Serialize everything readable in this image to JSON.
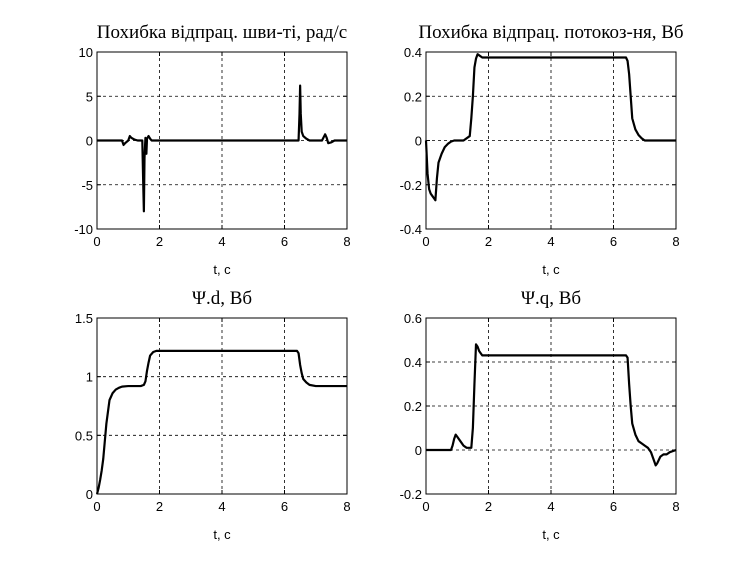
{
  "chart_data": [
    {
      "type": "line",
      "title": "Похибка відпрац. шви-ті, рад/с",
      "xlabel": "t, c",
      "ylabel": "",
      "xlim": [
        0,
        8
      ],
      "ylim": [
        -10,
        10
      ],
      "x_ticks": [
        "0",
        "2",
        "4",
        "6",
        "8"
      ],
      "y_ticks": [
        "10",
        "5",
        "0",
        "-5",
        "-10"
      ],
      "grid": true,
      "series": [
        {
          "x": [
            0,
            0.8,
            0.85,
            0.9,
            1.0,
            1.05,
            1.1,
            1.2,
            1.3,
            1.45,
            1.48,
            1.5,
            1.52,
            1.55,
            1.58,
            1.6,
            1.65,
            1.7,
            1.75,
            1.85,
            2.0,
            6.45,
            6.48,
            6.5,
            6.52,
            6.55,
            6.6,
            6.7,
            6.8,
            7.0,
            7.2,
            7.3,
            7.35,
            7.4,
            7.5,
            7.6,
            8.0
          ],
          "y": [
            0,
            0,
            -0.5,
            -0.3,
            0,
            0.5,
            0.3,
            0.1,
            0,
            0,
            -5,
            -8,
            -2,
            0.3,
            -1.5,
            0.2,
            0.5,
            0.2,
            0,
            0,
            0,
            0,
            3,
            6.2,
            3,
            1,
            0.5,
            0.2,
            0,
            0,
            0,
            0.7,
            0.3,
            -0.3,
            -0.2,
            0,
            0
          ]
        }
      ]
    },
    {
      "type": "line",
      "title": "Похибка відпрац. потокоз-ня, Вб",
      "xlabel": "t, c",
      "ylabel": "",
      "xlim": [
        0,
        8
      ],
      "ylim": [
        -0.4,
        0.4
      ],
      "x_ticks": [
        "0",
        "2",
        "4",
        "6",
        "8"
      ],
      "y_ticks": [
        "0.4",
        "0.2",
        "0",
        "-0.2",
        "-0.4"
      ],
      "grid": true,
      "series": [
        {
          "x": [
            0,
            0.05,
            0.1,
            0.15,
            0.2,
            0.25,
            0.3,
            0.35,
            0.4,
            0.5,
            0.6,
            0.7,
            0.8,
            0.9,
            1.0,
            1.2,
            1.4,
            1.45,
            1.5,
            1.55,
            1.6,
            1.65,
            1.7,
            1.8,
            2.0,
            6.4,
            6.45,
            6.5,
            6.55,
            6.6,
            6.7,
            6.8,
            6.9,
            7.0,
            7.2,
            7.5,
            8.0
          ],
          "y": [
            0,
            -0.15,
            -0.22,
            -0.24,
            -0.25,
            -0.26,
            -0.27,
            -0.17,
            -0.1,
            -0.06,
            -0.03,
            -0.015,
            -0.005,
            0,
            0,
            0,
            0.02,
            0.1,
            0.2,
            0.33,
            0.37,
            0.39,
            0.385,
            0.375,
            0.375,
            0.375,
            0.36,
            0.3,
            0.2,
            0.1,
            0.05,
            0.025,
            0.01,
            0,
            0,
            0,
            0
          ]
        }
      ]
    },
    {
      "type": "line",
      "title": "Ψ.d, Вб",
      "xlabel": "t, c",
      "ylabel": "",
      "xlim": [
        0,
        8
      ],
      "ylim": [
        0,
        1.5
      ],
      "x_ticks": [
        "0",
        "2",
        "4",
        "6",
        "8"
      ],
      "y_ticks": [
        "1.5",
        "1",
        "0.5",
        "0"
      ],
      "grid": true,
      "series": [
        {
          "x": [
            0,
            0.05,
            0.1,
            0.15,
            0.2,
            0.25,
            0.3,
            0.35,
            0.4,
            0.5,
            0.6,
            0.7,
            0.8,
            1.0,
            1.2,
            1.4,
            1.5,
            1.55,
            1.6,
            1.65,
            1.7,
            1.8,
            1.9,
            2.0,
            6.4,
            6.45,
            6.5,
            6.55,
            6.6,
            6.7,
            6.8,
            7.0,
            8.0
          ],
          "y": [
            0,
            0.05,
            0.12,
            0.2,
            0.3,
            0.45,
            0.6,
            0.7,
            0.8,
            0.86,
            0.89,
            0.905,
            0.915,
            0.92,
            0.92,
            0.92,
            0.93,
            0.96,
            1.05,
            1.12,
            1.18,
            1.21,
            1.22,
            1.22,
            1.22,
            1.2,
            1.1,
            1.03,
            0.98,
            0.95,
            0.93,
            0.92,
            0.92
          ]
        }
      ]
    },
    {
      "type": "line",
      "title": "Ψ.q, Вб",
      "xlabel": "t, c",
      "ylabel": "",
      "xlim": [
        0,
        8
      ],
      "ylim": [
        -0.2,
        0.6
      ],
      "x_ticks": [
        "0",
        "2",
        "4",
        "6",
        "8"
      ],
      "y_ticks": [
        "0.6",
        "0.4",
        "0.2",
        "0",
        "-0.2"
      ],
      "grid": true,
      "series": [
        {
          "x": [
            0,
            0.8,
            0.85,
            0.9,
            0.95,
            1.0,
            1.1,
            1.2,
            1.3,
            1.45,
            1.5,
            1.55,
            1.6,
            1.65,
            1.7,
            1.75,
            1.8,
            1.9,
            2.0,
            6.4,
            6.45,
            6.5,
            6.55,
            6.6,
            6.7,
            6.8,
            6.9,
            7.0,
            7.1,
            7.2,
            7.3,
            7.35,
            7.4,
            7.5,
            7.6,
            7.7,
            7.8,
            8.0
          ],
          "y": [
            0,
            0,
            0.02,
            0.05,
            0.07,
            0.06,
            0.04,
            0.02,
            0.01,
            0.01,
            0.1,
            0.3,
            0.48,
            0.47,
            0.45,
            0.44,
            0.43,
            0.43,
            0.43,
            0.43,
            0.42,
            0.3,
            0.2,
            0.12,
            0.07,
            0.04,
            0.03,
            0.02,
            0.01,
            -0.01,
            -0.05,
            -0.07,
            -0.06,
            -0.03,
            -0.02,
            -0.02,
            -0.01,
            0
          ]
        }
      ]
    }
  ]
}
